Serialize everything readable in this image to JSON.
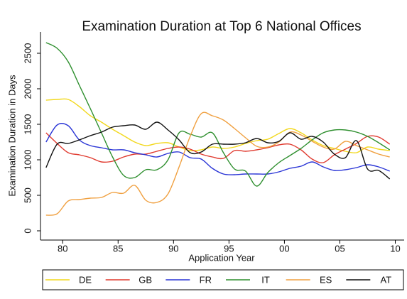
{
  "chart_data": {
    "type": "line",
    "title": "Examination Duration at Top 6 National Offices",
    "x_label": "Application Year",
    "y_label": "Examination Duration in Days",
    "x": [
      1978.5,
      1979.5,
      1980.5,
      1981.5,
      1982.5,
      1983.5,
      1984.5,
      1985.5,
      1986.5,
      1987.5,
      1988.5,
      1989.5,
      1990.5,
      1991.5,
      1992.5,
      1993.5,
      1994.5,
      1995.5,
      1996.5,
      1997.5,
      1998.5,
      1999.5,
      2000.5,
      2001.5,
      2002.5,
      2003.5,
      2004.5,
      2005.5,
      2006.5,
      2007.5,
      2008.5,
      2009.5
    ],
    "xlim": [
      1978,
      2010.8
    ],
    "xticks": [
      {
        "value": 1980,
        "label": "80"
      },
      {
        "value": 1985,
        "label": "85"
      },
      {
        "value": 1990,
        "label": "90"
      },
      {
        "value": 1995,
        "label": "95"
      },
      {
        "value": 2000,
        "label": "00"
      },
      {
        "value": 2005,
        "label": "05"
      },
      {
        "value": 2010,
        "label": "10"
      }
    ],
    "ylim": [
      -130,
      2800
    ],
    "yticks": [
      0,
      500,
      1000,
      1500,
      2000,
      2500
    ],
    "legend": "bottom",
    "series": [
      {
        "name": "DE",
        "color": "#f2d81c",
        "values": [
          1840,
          1850,
          1850,
          1750,
          1620,
          1530,
          1430,
          1340,
          1250,
          1200,
          1230,
          1240,
          1180,
          1130,
          1140,
          1180,
          1160,
          1180,
          1230,
          1270,
          1290,
          1370,
          1440,
          1380,
          1280,
          1200,
          1160,
          1120,
          1100,
          1180,
          1150,
          1130
        ]
      },
      {
        "name": "GB",
        "color": "#e03a2f",
        "values": [
          1380,
          1230,
          1100,
          1070,
          1030,
          970,
          980,
          1040,
          1080,
          1080,
          1120,
          1160,
          1180,
          1150,
          1080,
          1040,
          1020,
          1130,
          1120,
          1140,
          1170,
          1210,
          1220,
          1140,
          1010,
          960,
          1070,
          1150,
          1230,
          1330,
          1320,
          1220
        ]
      },
      {
        "name": "FR",
        "color": "#2a35d6",
        "values": [
          1250,
          1490,
          1480,
          1280,
          1200,
          1170,
          1140,
          1140,
          1100,
          1070,
          1040,
          1090,
          1110,
          1030,
          1010,
          880,
          800,
          790,
          800,
          800,
          800,
          830,
          880,
          910,
          970,
          900,
          850,
          860,
          890,
          930,
          900,
          840
        ]
      },
      {
        "name": "IT",
        "color": "#2e8f2e",
        "values": [
          2650,
          2570,
          2380,
          2050,
          1720,
          1380,
          1040,
          780,
          750,
          860,
          860,
          1000,
          1380,
          1360,
          1320,
          1380,
          1100,
          870,
          840,
          630,
          820,
          960,
          1060,
          1160,
          1280,
          1380,
          1420,
          1420,
          1390,
          1330,
          1240,
          1140
        ]
      },
      {
        "name": "ES",
        "color": "#f0a040",
        "values": [
          220,
          240,
          420,
          440,
          460,
          470,
          540,
          530,
          640,
          430,
          400,
          520,
          900,
          1330,
          1650,
          1620,
          1560,
          1440,
          1310,
          1190,
          1180,
          1250,
          1390,
          1350,
          1260,
          1180,
          1150,
          1260,
          1200,
          1140,
          1080,
          1040
        ]
      },
      {
        "name": "AT",
        "color": "#111111",
        "values": [
          890,
          1220,
          1230,
          1280,
          1340,
          1390,
          1460,
          1480,
          1490,
          1430,
          1530,
          1420,
          1280,
          1100,
          1110,
          1220,
          1220,
          1220,
          1240,
          1300,
          1240,
          1260,
          1380,
          1290,
          1330,
          1250,
          1080,
          1030,
          1270,
          870,
          850,
          730
        ]
      }
    ]
  }
}
